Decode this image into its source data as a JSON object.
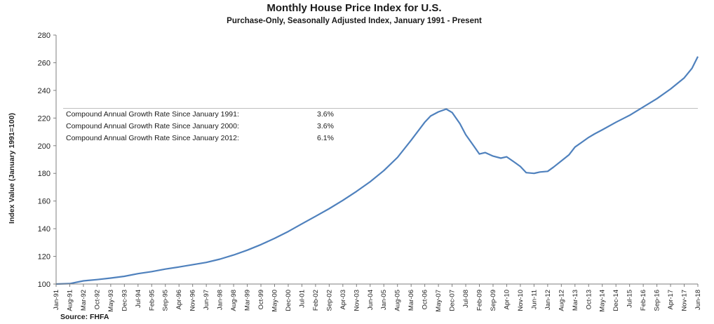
{
  "chart_data": {
    "type": "line",
    "title": "Monthly House Price Index for U.S.",
    "subtitle": "Purchase-Only, Seasonally Adjusted Index, January 1991 - Present",
    "ylabel": "Index Value (January 1991=100)",
    "xlabel": "",
    "ylim": [
      100,
      280
    ],
    "yticks": [
      "100",
      "120",
      "140",
      "160",
      "180",
      "200",
      "220",
      "240",
      "260",
      "280"
    ],
    "xticks": [
      "Jan-91",
      "Aug-91",
      "Mar-92",
      "Oct-92",
      "May-93",
      "Dec-93",
      "Jul-94",
      "Feb-95",
      "Sep-95",
      "Apr-96",
      "Nov-96",
      "Jun-97",
      "Jan-98",
      "Aug-98",
      "Mar-99",
      "Oct-99",
      "May-00",
      "Dec-00",
      "Jul-01",
      "Feb-02",
      "Sep-02",
      "Apr-03",
      "Nov-03",
      "Jun-04",
      "Jan-05",
      "Aug-05",
      "Mar-06",
      "Oct-06",
      "May-07",
      "Dec-07",
      "Jul-08",
      "Feb-09",
      "Sep-09",
      "Apr-10",
      "Nov-10",
      "Jun-11",
      "Jan-12",
      "Aug-12",
      "Mar-13",
      "Oct-13",
      "May-14",
      "Dec-14",
      "Jul-15",
      "Feb-16",
      "Sep-16",
      "Apr-17",
      "Nov-17",
      "Jun-18"
    ],
    "x_range": [
      "Jan-91",
      "Jun-18"
    ],
    "grid": false,
    "reference_line": {
      "y": 227
    },
    "series": [
      {
        "color": "#4f81bd",
        "points": [
          [
            "1991-01",
            100.0
          ],
          [
            "1991-08",
            100.3
          ],
          [
            "1992-03",
            102.3
          ],
          [
            "1992-10",
            103.2
          ],
          [
            "1993-05",
            104.3
          ],
          [
            "1993-12",
            105.6
          ],
          [
            "1994-07",
            107.5
          ],
          [
            "1995-02",
            109.0
          ],
          [
            "1995-09",
            110.8
          ],
          [
            "1996-04",
            112.3
          ],
          [
            "1996-11",
            114.0
          ],
          [
            "1997-06",
            115.6
          ],
          [
            "1998-01",
            118.0
          ],
          [
            "1998-08",
            121.0
          ],
          [
            "1999-03",
            124.5
          ],
          [
            "1999-10",
            128.5
          ],
          [
            "2000-05",
            133.0
          ],
          [
            "2000-12",
            138.0
          ],
          [
            "2001-07",
            143.5
          ],
          [
            "2002-02",
            149.0
          ],
          [
            "2002-09",
            154.5
          ],
          [
            "2003-04",
            160.5
          ],
          [
            "2003-11",
            167.0
          ],
          [
            "2004-06",
            174.0
          ],
          [
            "2005-01",
            182.0
          ],
          [
            "2005-08",
            191.5
          ],
          [
            "2006-03",
            204.0
          ],
          [
            "2006-10",
            217.0
          ],
          [
            "2007-01",
            221.5
          ],
          [
            "2007-05",
            224.5
          ],
          [
            "2007-09",
            226.5
          ],
          [
            "2007-12",
            224.0
          ],
          [
            "2008-04",
            216.0
          ],
          [
            "2008-07",
            208.0
          ],
          [
            "2008-11",
            200.0
          ],
          [
            "2009-02",
            194.0
          ],
          [
            "2009-05",
            195.0
          ],
          [
            "2009-09",
            192.5
          ],
          [
            "2010-01",
            191.0
          ],
          [
            "2010-04",
            192.0
          ],
          [
            "2010-08",
            188.0
          ],
          [
            "2010-11",
            185.0
          ],
          [
            "2011-02",
            180.5
          ],
          [
            "2011-06",
            180.0
          ],
          [
            "2011-09",
            181.0
          ],
          [
            "2012-01",
            181.5
          ],
          [
            "2012-04",
            184.5
          ],
          [
            "2012-08",
            189.0
          ],
          [
            "2012-12",
            193.5
          ],
          [
            "2013-03",
            199.0
          ],
          [
            "2013-07",
            203.0
          ],
          [
            "2013-10",
            206.0
          ],
          [
            "2014-01",
            208.5
          ],
          [
            "2014-05",
            211.5
          ],
          [
            "2014-12",
            217.0
          ],
          [
            "2015-07",
            222.0
          ],
          [
            "2016-02",
            228.0
          ],
          [
            "2016-09",
            234.0
          ],
          [
            "2017-04",
            241.0
          ],
          [
            "2017-11",
            249.0
          ],
          [
            "2018-03",
            256.0
          ],
          [
            "2018-06",
            264.5
          ]
        ]
      }
    ],
    "annotations": [
      {
        "label": "Compound Annual Growth Rate Since January 1991:",
        "value": "3.6%"
      },
      {
        "label": "Compound Annual Growth Rate Since January 2000:",
        "value": "3.6%"
      },
      {
        "label": "Compound Annual Growth Rate Since January 2012:",
        "value": "6.1%"
      }
    ],
    "source": "Source:  FHFA"
  }
}
